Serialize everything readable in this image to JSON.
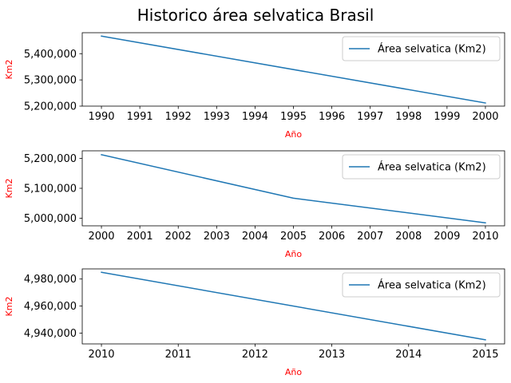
{
  "figure": {
    "title": "Historico área selvatica Brasil"
  },
  "chart_data": [
    {
      "type": "line",
      "title": "",
      "xlabel": "Año",
      "ylabel": "Km2",
      "label_color": "#ff0000",
      "xlim": [
        1989.5,
        2000.5
      ],
      "ylim": [
        5200000,
        5480000
      ],
      "xticks": [
        1990,
        1991,
        1992,
        1993,
        1994,
        1995,
        1996,
        1997,
        1998,
        1999,
        2000
      ],
      "yticks": [
        5200000,
        5300000,
        5400000
      ],
      "ytick_labels": [
        "5,200,000",
        "5,300,000",
        "5,400,000"
      ],
      "legend": "top-right",
      "grid": false,
      "series": [
        {
          "name": "Área selvatica (Km2)",
          "color": "#1f77b4",
          "x": [
            1990,
            2000
          ],
          "y": [
            5467000,
            5212000
          ]
        }
      ]
    },
    {
      "type": "line",
      "title": "",
      "xlabel": "Año",
      "ylabel": "Km2",
      "label_color": "#ff0000",
      "xlim": [
        1999.5,
        2010.5
      ],
      "ylim": [
        4975000,
        5225000
      ],
      "xticks": [
        2000,
        2001,
        2002,
        2003,
        2004,
        2005,
        2006,
        2007,
        2008,
        2009,
        2010
      ],
      "yticks": [
        5000000,
        5100000,
        5200000
      ],
      "ytick_labels": [
        "5,000,000",
        "5,100,000",
        "5,200,000"
      ],
      "legend": "top-right",
      "grid": false,
      "series": [
        {
          "name": "Área selvatica (Km2)",
          "color": "#1f77b4",
          "x": [
            2000,
            2005,
            2010
          ],
          "y": [
            5212000,
            5067000,
            4985000
          ]
        }
      ]
    },
    {
      "type": "line",
      "title": "",
      "xlabel": "Año",
      "ylabel": "Km2",
      "label_color": "#ff0000",
      "xlim": [
        2009.75,
        2015.25
      ],
      "ylim": [
        4932000,
        4987500
      ],
      "xticks": [
        2010,
        2011,
        2012,
        2013,
        2014,
        2015
      ],
      "yticks": [
        4940000,
        4960000,
        4980000
      ],
      "ytick_labels": [
        "4,940,000",
        "4,960,000",
        "4,980,000"
      ],
      "legend": "top-right",
      "grid": false,
      "series": [
        {
          "name": "Área selvatica (Km2)",
          "color": "#1f77b4",
          "x": [
            2010,
            2015
          ],
          "y": [
            4985000,
            4935000
          ]
        }
      ]
    }
  ]
}
